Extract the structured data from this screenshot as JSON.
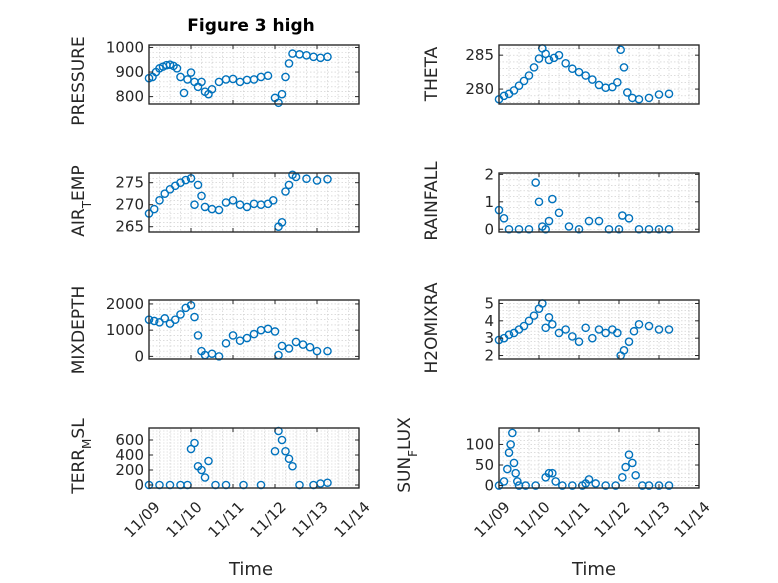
{
  "page": {
    "background": "#ffffff",
    "marker_color": "#0072bd"
  },
  "chart_data": [
    {
      "type": "scatter",
      "title": "Figure 3 high",
      "ylabel": "PRESSURE",
      "xlim": [
        "11/09",
        "11/14"
      ],
      "ylim": [
        770,
        1010
      ],
      "yticks": [
        800,
        900,
        1000
      ],
      "x": [
        "11/09 00:00",
        "11/09 02:00",
        "11/09 04:00",
        "11/09 06:00",
        "11/09 08:00",
        "11/09 10:00",
        "11/09 12:00",
        "11/09 14:00",
        "11/09 16:00",
        "11/09 18:00",
        "11/09 20:00",
        "11/09 22:00",
        "11/10 00:00",
        "11/10 02:00",
        "11/10 04:00",
        "11/10 06:00",
        "11/10 08:00",
        "11/10 10:00",
        "11/10 12:00",
        "11/10 16:00",
        "11/10 20:00",
        "11/11 00:00",
        "11/11 04:00",
        "11/11 08:00",
        "11/11 12:00",
        "11/11 16:00",
        "11/11 20:00",
        "11/12 00:00",
        "11/12 02:00",
        "11/12 04:00",
        "11/12 06:00",
        "11/12 08:00",
        "11/12 10:00",
        "11/12 14:00",
        "11/12 18:00",
        "11/12 22:00",
        "11/13 02:00",
        "11/13 06:00"
      ],
      "y": [
        875,
        880,
        900,
        915,
        922,
        928,
        930,
        925,
        915,
        880,
        815,
        870,
        898,
        860,
        840,
        860,
        820,
        810,
        830,
        860,
        870,
        872,
        860,
        868,
        870,
        880,
        885,
        795,
        775,
        810,
        880,
        935,
        975,
        972,
        968,
        962,
        958,
        962
      ]
    },
    {
      "type": "scatter",
      "ylabel": "THETA",
      "xlim": [
        "11/09",
        "11/14"
      ],
      "ylim": [
        277.8,
        286.5
      ],
      "yticks": [
        280,
        285
      ],
      "x": [
        "11/09 00:00",
        "11/09 03:00",
        "11/09 06:00",
        "11/09 09:00",
        "11/09 12:00",
        "11/09 15:00",
        "11/09 18:00",
        "11/09 21:00",
        "11/10 00:00",
        "11/10 02:00",
        "11/10 04:00",
        "11/10 06:00",
        "11/10 09:00",
        "11/10 12:00",
        "11/10 16:00",
        "11/10 20:00",
        "11/11 00:00",
        "11/11 04:00",
        "11/11 08:00",
        "11/11 12:00",
        "11/11 16:00",
        "11/11 20:00",
        "11/11 23:00",
        "11/12 01:00",
        "11/12 03:00",
        "11/12 05:00",
        "11/12 08:00",
        "11/12 12:00",
        "11/12 18:00",
        "11/13 00:00",
        "11/13 06:00"
      ],
      "y": [
        278.5,
        279,
        279.3,
        279.8,
        280.5,
        281.2,
        282,
        283.2,
        284.5,
        286,
        285.2,
        284.3,
        284.6,
        285,
        283.8,
        283,
        282.5,
        282,
        281.4,
        280.6,
        280.2,
        280.3,
        281,
        285.8,
        283.2,
        279.5,
        278.7,
        278.5,
        278.7,
        279.2,
        279.3
      ]
    },
    {
      "type": "scatter",
      "ylabel": "AIR_TEMP",
      "xlim": [
        "11/09",
        "11/14"
      ],
      "ylim": [
        263.8,
        277.2
      ],
      "yticks": [
        265,
        270,
        275
      ],
      "x": [
        "11/09 00:00",
        "11/09 03:00",
        "11/09 06:00",
        "11/09 09:00",
        "11/09 12:00",
        "11/09 15:00",
        "11/09 18:00",
        "11/09 21:00",
        "11/10 00:00",
        "11/10 02:00",
        "11/10 04:00",
        "11/10 06:00",
        "11/10 08:00",
        "11/10 12:00",
        "11/10 16:00",
        "11/10 20:00",
        "11/11 00:00",
        "11/11 04:00",
        "11/11 08:00",
        "11/11 12:00",
        "11/11 16:00",
        "11/11 20:00",
        "11/11 23:00",
        "11/12 02:00",
        "11/12 04:00",
        "11/12 06:00",
        "11/12 08:00",
        "11/12 10:00",
        "11/12 12:00",
        "11/12 18:00",
        "11/13 00:00",
        "11/13 06:00"
      ],
      "y": [
        268,
        269,
        271,
        272.5,
        273.5,
        274.3,
        275,
        275.6,
        276,
        270,
        274.5,
        272,
        269.5,
        269,
        268.8,
        270.5,
        271,
        270,
        269.5,
        270.2,
        270,
        270.2,
        271,
        265,
        266,
        273,
        274.5,
        276.8,
        276.3,
        275.9,
        275.5,
        275.8
      ]
    },
    {
      "type": "scatter",
      "ylabel": "RAINFALL",
      "xlim": [
        "11/09",
        "11/14"
      ],
      "ylim": [
        -0.1,
        2.05
      ],
      "yticks": [
        0,
        1,
        2
      ],
      "x": [
        "11/09 00:00",
        "11/09 03:00",
        "11/09 06:00",
        "11/09 12:00",
        "11/09 18:00",
        "11/09 22:00",
        "11/10 00:00",
        "11/10 02:00",
        "11/10 04:00",
        "11/10 06:00",
        "11/10 08:00",
        "11/10 12:00",
        "11/10 18:00",
        "11/11 00:00",
        "11/11 06:00",
        "11/11 12:00",
        "11/11 18:00",
        "11/12 00:00",
        "11/12 02:00",
        "11/12 06:00",
        "11/12 12:00",
        "11/12 18:00",
        "11/13 00:00",
        "11/13 06:00"
      ],
      "y": [
        0.7,
        0.4,
        0,
        0,
        0,
        1.7,
        1.0,
        0.1,
        0,
        0.3,
        1.1,
        0.6,
        0.1,
        0,
        0.3,
        0.3,
        0,
        0,
        0.5,
        0.4,
        0,
        0,
        0,
        0
      ]
    },
    {
      "type": "scatter",
      "ylabel": "MIXDEPTH",
      "xlim": [
        "11/09",
        "11/14"
      ],
      "ylim": [
        -100,
        2150
      ],
      "yticks": [
        0,
        1000,
        2000
      ],
      "x": [
        "11/09 00:00",
        "11/09 03:00",
        "11/09 06:00",
        "11/09 09:00",
        "11/09 12:00",
        "11/09 15:00",
        "11/09 18:00",
        "11/09 21:00",
        "11/10 00:00",
        "11/10 02:00",
        "11/10 04:00",
        "11/10 06:00",
        "11/10 08:00",
        "11/10 12:00",
        "11/10 16:00",
        "11/10 20:00",
        "11/11 00:00",
        "11/11 04:00",
        "11/11 08:00",
        "11/11 12:00",
        "11/11 16:00",
        "11/11 20:00",
        "11/12 00:00",
        "11/12 02:00",
        "11/12 04:00",
        "11/12 08:00",
        "11/12 12:00",
        "11/12 16:00",
        "11/12 20:00",
        "11/13 00:00",
        "11/13 06:00"
      ],
      "y": [
        1400,
        1350,
        1300,
        1450,
        1250,
        1400,
        1600,
        1850,
        1950,
        1500,
        800,
        200,
        50,
        100,
        0,
        500,
        800,
        600,
        700,
        850,
        1000,
        1050,
        950,
        50,
        400,
        300,
        550,
        450,
        350,
        200,
        200
      ]
    },
    {
      "type": "scatter",
      "ylabel": "H2OMIXRA",
      "xlim": [
        "11/09",
        "11/14"
      ],
      "ylim": [
        1.8,
        5.2
      ],
      "yticks": [
        2,
        3,
        4,
        5
      ],
      "x": [
        "11/09 00:00",
        "11/09 03:00",
        "11/09 06:00",
        "11/09 09:00",
        "11/09 12:00",
        "11/09 15:00",
        "11/09 18:00",
        "11/09 21:00",
        "11/10 00:00",
        "11/10 02:00",
        "11/10 04:00",
        "11/10 06:00",
        "11/10 08:00",
        "11/10 12:00",
        "11/10 16:00",
        "11/10 20:00",
        "11/11 00:00",
        "11/11 04:00",
        "11/11 08:00",
        "11/11 12:00",
        "11/11 16:00",
        "11/11 20:00",
        "11/11 23:00",
        "11/12 01:00",
        "11/12 03:00",
        "11/12 06:00",
        "11/12 09:00",
        "11/12 12:00",
        "11/12 18:00",
        "11/13 00:00",
        "11/13 06:00"
      ],
      "y": [
        2.9,
        3.0,
        3.2,
        3.3,
        3.5,
        3.7,
        4.0,
        4.3,
        4.7,
        5.0,
        3.6,
        4.2,
        3.8,
        3.3,
        3.5,
        3.1,
        2.8,
        3.6,
        3.0,
        3.5,
        3.3,
        3.5,
        3.3,
        2.0,
        2.3,
        2.8,
        3.4,
        3.8,
        3.7,
        3.5,
        3.5
      ]
    },
    {
      "type": "scatter",
      "ylabel": "TERR_MSL",
      "xlim": [
        "11/09",
        "11/14"
      ],
      "ylim": [
        -40,
        760
      ],
      "yticks": [
        0,
        200,
        400,
        600
      ],
      "x": [
        "11/09 00:00",
        "11/09 06:00",
        "11/09 12:00",
        "11/09 18:00",
        "11/09 22:00",
        "11/10 00:00",
        "11/10 02:00",
        "11/10 04:00",
        "11/10 06:00",
        "11/10 08:00",
        "11/10 10:00",
        "11/10 14:00",
        "11/10 20:00",
        "11/11 06:00",
        "11/11 16:00",
        "11/12 00:00",
        "11/12 02:00",
        "11/12 04:00",
        "11/12 06:00",
        "11/12 08:00",
        "11/12 10:00",
        "11/12 14:00",
        "11/12 22:00",
        "11/13 02:00",
        "11/13 06:00"
      ],
      "y": [
        0,
        0,
        0,
        0,
        0,
        480,
        560,
        250,
        200,
        100,
        320,
        0,
        0,
        0,
        0,
        450,
        720,
        600,
        450,
        350,
        250,
        0,
        0,
        20,
        30
      ]
    },
    {
      "type": "scatter",
      "ylabel": "SUN_FLUX",
      "xlim": [
        "11/09",
        "11/14"
      ],
      "ylim": [
        -6,
        140
      ],
      "yticks": [
        0,
        50,
        100
      ],
      "x": [
        "11/09 00:00",
        "11/09 03:00",
        "11/09 05:00",
        "11/09 06:00",
        "11/09 07:00",
        "11/09 08:00",
        "11/09 09:00",
        "11/09 10:00",
        "11/09 11:00",
        "11/09 12:00",
        "11/09 16:00",
        "11/09 22:00",
        "11/10 04:00",
        "11/10 06:00",
        "11/10 08:00",
        "11/10 10:00",
        "11/10 14:00",
        "11/10 20:00",
        "11/11 02:00",
        "11/11 04:00",
        "11/11 06:00",
        "11/11 10:00",
        "11/11 16:00",
        "11/11 22:00",
        "11/12 02:00",
        "11/12 04:00",
        "11/12 06:00",
        "11/12 08:00",
        "11/12 10:00",
        "11/12 14:00",
        "11/12 18:00",
        "11/13 00:00",
        "11/13 06:00"
      ],
      "y": [
        0,
        10,
        40,
        80,
        100,
        128,
        55,
        30,
        10,
        0,
        0,
        0,
        20,
        30,
        30,
        10,
        0,
        0,
        0,
        5,
        15,
        5,
        0,
        0,
        20,
        45,
        75,
        55,
        25,
        0,
        0,
        0,
        0
      ]
    }
  ],
  "labels": {
    "title": "Figure 3 high",
    "xtick_labels": [
      "11/09",
      "11/10",
      "11/11",
      "11/12",
      "11/13",
      "11/14"
    ],
    "xlabel": "Time",
    "ylabels": {
      "p0": "PRESSURE",
      "p1": "THETA",
      "p2_main": "AIR",
      "p2_sub": "T",
      "p2_tail": "EMP",
      "p3": "RAINFALL",
      "p4": "MIXDEPTH",
      "p5": "H2OMIXRA",
      "p6_main": "TERR",
      "p6_sub": "M",
      "p6_tail": "SL",
      "p7_main": "SUN",
      "p7_sub": "F",
      "p7_tail": "LUX"
    }
  }
}
